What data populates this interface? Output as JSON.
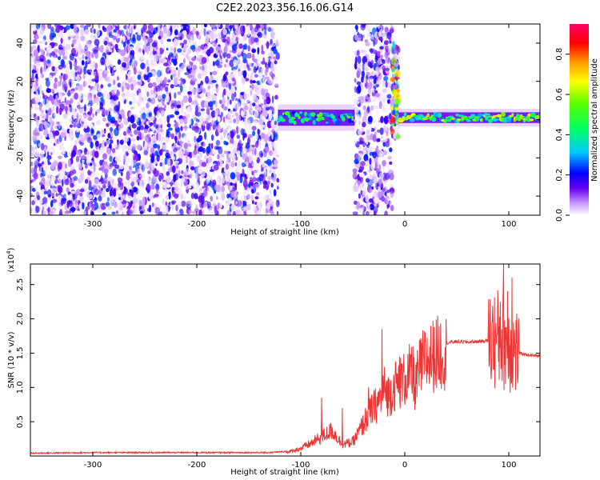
{
  "title": "C2E2.2023.356.16.06.G14",
  "chart_data": [
    {
      "type": "heatmap",
      "xlabel": "Height of straight line (km)",
      "ylabel": "Frequency (Hz)",
      "xlim": [
        -360,
        130
      ],
      "ylim": [
        -50,
        50
      ],
      "x_ticks": [
        -300,
        -200,
        -100,
        0,
        100
      ],
      "x_tick_labels": [
        "-300",
        "-200",
        "-100",
        "0",
        "100"
      ],
      "y_ticks": [
        -40,
        -20,
        0,
        20,
        40
      ],
      "y_tick_labels": [
        "-40",
        "-20",
        "0",
        "20",
        "40"
      ],
      "colorbar": {
        "label": "Normalized spectral amplitude",
        "range": [
          0,
          0.95
        ],
        "ticks": [
          0.0,
          0.2,
          0.4,
          0.6,
          0.8
        ],
        "tick_labels": [
          "0.0",
          "0.2",
          "0.4",
          "0.6",
          "0.8"
        ],
        "colors": [
          "#ffffff",
          "#cc99ff",
          "#6600ee",
          "#0000ff",
          "#00ccff",
          "#00ff66",
          "#55ff00",
          "#ffff00",
          "#ff9900",
          "#ff0000",
          "#ff0066"
        ]
      },
      "regions": [
        {
          "x": [
            -360,
            -122
          ],
          "y": [
            -50,
            50
          ],
          "kind": "broadband-noise",
          "level": 0.15
        },
        {
          "x": [
            -122,
            -48
          ],
          "y": [
            -5,
            7
          ],
          "kind": "narrow-band",
          "level": 0.45,
          "center": 1
        },
        {
          "x": [
            -48,
            -12
          ],
          "y": [
            -50,
            50
          ],
          "kind": "broadband-noise",
          "level": 0.15
        },
        {
          "x": [
            -12,
            -6
          ],
          "y": [
            -10,
            40
          ],
          "kind": "spike",
          "level": 0.4
        },
        {
          "x": [
            -6,
            130
          ],
          "y": [
            -3,
            5
          ],
          "kind": "narrow-band",
          "level": 0.55,
          "center": 1
        }
      ]
    },
    {
      "type": "line",
      "xlabel": "Height of straight line (km)",
      "ylabel": "SNR (10 * v/v)",
      "y_multiplier": "(x10",
      "y_multiplier_exp": "4",
      "y_multiplier_close": ")",
      "xlim": [
        -360,
        130
      ],
      "ylim": [
        0,
        2.8
      ],
      "x_ticks": [
        -300,
        -200,
        -100,
        0,
        100
      ],
      "x_tick_labels": [
        "-300",
        "-200",
        "-100",
        "0",
        "100"
      ],
      "y_ticks": [
        0.5,
        1.0,
        1.5,
        2.0,
        2.5
      ],
      "y_tick_labels": [
        "0.5",
        "1.0",
        "1.5",
        "2.0",
        "2.5"
      ],
      "line_color": "#ee3333",
      "series": [
        {
          "x": [
            -360,
            -300,
            -200,
            -130,
            -110,
            -100,
            -90,
            -80,
            -70,
            -60,
            -50,
            -45,
            -40,
            -35,
            -30,
            -25,
            -20,
            -15,
            -10,
            -5,
            0,
            5,
            10,
            15,
            20,
            25,
            30,
            35,
            40,
            50,
            60,
            70,
            80,
            85,
            90,
            95,
            100,
            105,
            110,
            120,
            130
          ],
          "y": [
            0.04,
            0.05,
            0.05,
            0.05,
            0.07,
            0.12,
            0.2,
            0.3,
            0.4,
            0.18,
            0.22,
            0.35,
            0.5,
            0.65,
            0.75,
            0.85,
            1.05,
            0.95,
            1.1,
            1.15,
            1.2,
            1.3,
            1.1,
            1.4,
            1.5,
            1.55,
            1.6,
            1.62,
            1.65,
            1.67,
            1.66,
            1.67,
            1.68,
            1.7,
            1.7,
            1.72,
            1.65,
            1.55,
            1.5,
            1.47,
            1.46
          ],
          "spikes": [
            {
              "x": -80,
              "y": 0.85
            },
            {
              "x": -60,
              "y": 0.7
            },
            {
              "x": -35,
              "y": 1.0
            },
            {
              "x": -22,
              "y": 1.85
            },
            {
              "x": -5,
              "y": 1.45
            },
            {
              "x": 8,
              "y": 1.6
            },
            {
              "x": 85,
              "y": 1.95
            },
            {
              "x": 92,
              "y": 2.25
            },
            {
              "x": 95,
              "y": 2.8
            },
            {
              "x": 99,
              "y": 2.4
            },
            {
              "x": 103,
              "y": 2.6
            }
          ]
        }
      ]
    }
  ]
}
